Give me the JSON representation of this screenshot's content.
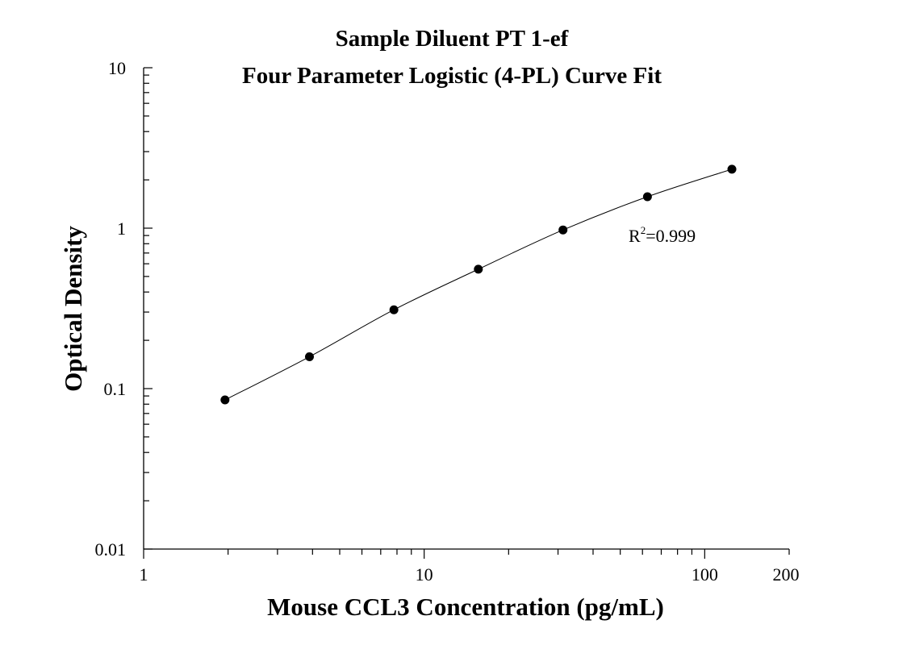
{
  "chart_data": {
    "type": "scatter",
    "title": "Sample Diluent PT 1-ef",
    "subtitle": "Four Parameter Logistic (4-PL) Curve Fit",
    "xlabel": "Mouse CCL3 Concentration (pg/mL)",
    "ylabel": "Optical Density",
    "x_scale": "log",
    "y_scale": "log",
    "xlim": [
      1,
      200
    ],
    "ylim": [
      0.01,
      10
    ],
    "x_ticks": [
      1,
      10,
      100,
      200
    ],
    "x_tick_labels": [
      "1",
      "10",
      "100",
      "200"
    ],
    "y_ticks": [
      0.01,
      0.1,
      1,
      10
    ],
    "y_tick_labels": [
      "0.01",
      "0.1",
      "1",
      "10"
    ],
    "grid": false,
    "series": [
      {
        "x": [
          1.95,
          3.9,
          7.8,
          15.6,
          31.25,
          62.5,
          125
        ],
        "y": [
          0.085,
          0.158,
          0.31,
          0.555,
          0.975,
          1.57,
          2.33
        ]
      }
    ],
    "fit_curve": "4-PL",
    "annotation": {
      "r2_symbol": "R",
      "r2_exponent": "2",
      "r2_value": "=0.999"
    },
    "colors": {
      "points": "#000000",
      "curve": "#000000",
      "axes": "#000000"
    }
  }
}
